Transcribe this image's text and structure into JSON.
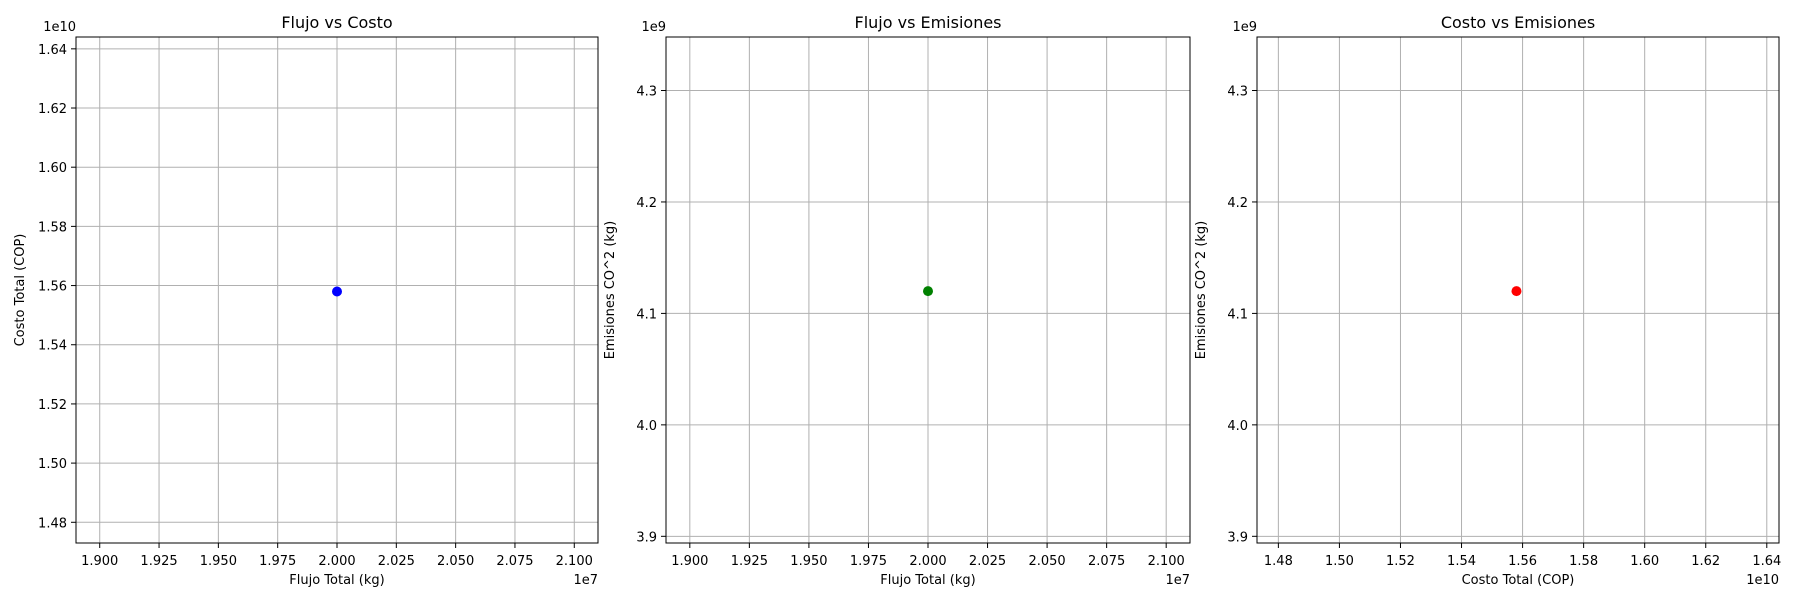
{
  "chart_data": [
    {
      "type": "scatter",
      "title": "Flujo vs Costo",
      "xlabel": "Flujo Total (kg)",
      "ylabel": "Costo Total (COP)",
      "x_offset_label": "1e7",
      "y_offset_label": "1e10",
      "x_ticks": [
        "1.900",
        "1.925",
        "1.950",
        "1.975",
        "2.000",
        "2.025",
        "2.050",
        "2.075",
        "2.100"
      ],
      "y_ticks": [
        "1.48",
        "1.50",
        "1.52",
        "1.54",
        "1.56",
        "1.58",
        "1.60",
        "1.62",
        "1.64"
      ],
      "xlim": [
        18900000,
        21100000
      ],
      "ylim": [
        14730000000,
        16440000000
      ],
      "grid": true,
      "color": "#0000ff",
      "points": [
        {
          "x": 20000000,
          "y": 15580000000
        }
      ]
    },
    {
      "type": "scatter",
      "title": "Flujo vs Emisiones",
      "xlabel": "Flujo Total (kg)",
      "ylabel": "Emisiones CO^2 (kg)",
      "x_offset_label": "1e7",
      "y_offset_label": "1e9",
      "x_ticks": [
        "1.900",
        "1.925",
        "1.950",
        "1.975",
        "2.000",
        "2.025",
        "2.050",
        "2.075",
        "2.100"
      ],
      "y_ticks": [
        "3.9",
        "4.0",
        "4.1",
        "4.2",
        "4.3"
      ],
      "xlim": [
        18900000,
        21100000
      ],
      "ylim": [
        3894000000,
        4348000000
      ],
      "grid": true,
      "color": "#008000",
      "points": [
        {
          "x": 20000000,
          "y": 4120000000
        }
      ]
    },
    {
      "type": "scatter",
      "title": "Costo vs Emisiones",
      "xlabel": "Costo Total (COP)",
      "ylabel": "Emisiones CO^2 (kg)",
      "x_offset_label": "1e10",
      "y_offset_label": "1e9",
      "x_ticks": [
        "1.48",
        "1.50",
        "1.52",
        "1.54",
        "1.56",
        "1.58",
        "1.60",
        "1.62",
        "1.64"
      ],
      "y_ticks": [
        "3.9",
        "4.0",
        "4.1",
        "4.2",
        "4.3"
      ],
      "xlim": [
        14730000000,
        16440000000
      ],
      "ylim": [
        3894000000,
        4348000000
      ],
      "grid": true,
      "color": "#ff0000",
      "points": [
        {
          "x": 15580000000,
          "y": 4120000000
        }
      ]
    }
  ]
}
